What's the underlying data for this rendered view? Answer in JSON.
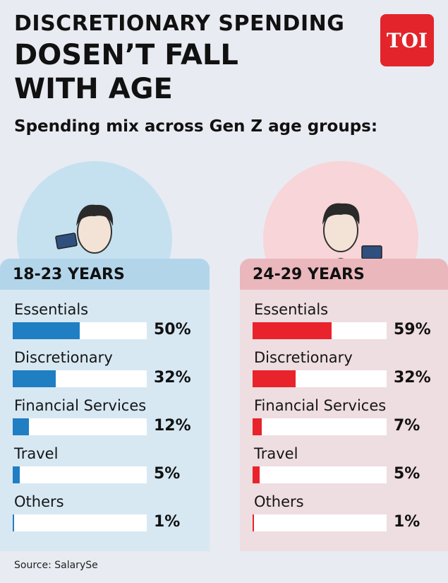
{
  "header": {
    "title_line1": "DISCRETIONARY SPENDING",
    "title_line2": "DOSEN’T FALL",
    "title_line3": "WITH AGE",
    "subtitle": "Spending mix across Gen Z age groups:",
    "logo_text": "TOI"
  },
  "colors": {
    "blue_bar": "#1f7fc2",
    "red_bar": "#e8232b"
  },
  "chart_data": [
    {
      "type": "bar",
      "title": "18-23 YEARS",
      "categories": [
        "Essentials",
        "Discretionary",
        "Financial Services",
        "Travel",
        "Others"
      ],
      "values": [
        50,
        32,
        12,
        5,
        1
      ],
      "value_labels": [
        "50%",
        "32%",
        "12%",
        "5%",
        "1%"
      ],
      "xlim": [
        0,
        100
      ],
      "orientation": "horizontal"
    },
    {
      "type": "bar",
      "title": "24-29 YEARS",
      "categories": [
        "Essentials",
        "Discretionary",
        "Financial Services",
        "Travel",
        "Others"
      ],
      "values": [
        59,
        32,
        7,
        5,
        1
      ],
      "value_labels": [
        "59%",
        "32%",
        "7%",
        "5%",
        "1%"
      ],
      "xlim": [
        0,
        100
      ],
      "orientation": "horizontal"
    }
  ],
  "footer": {
    "source": "Source: SalarySe"
  }
}
